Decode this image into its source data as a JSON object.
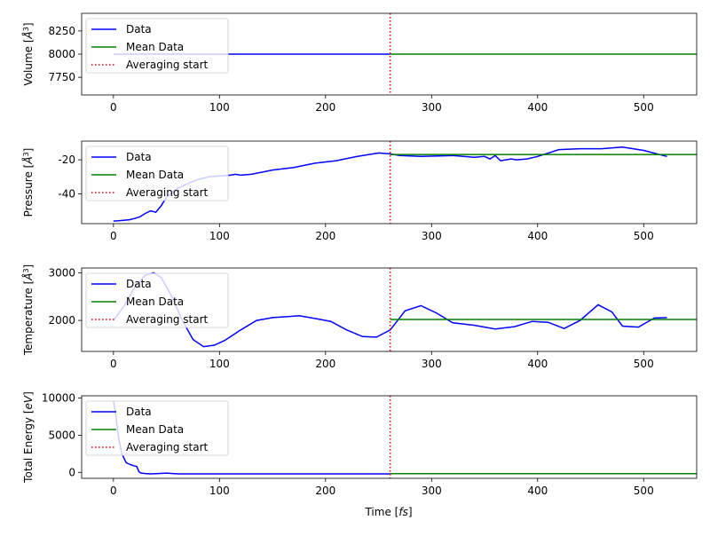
{
  "xlabel": "Time [fs]",
  "xlabel_parts": [
    "Time [",
    "fs",
    "]"
  ],
  "legend_labels": [
    "Data",
    "Mean Data",
    "Averaging start"
  ],
  "colors": {
    "data": "#0000ff",
    "mean": "#008000",
    "start": "#ff0000"
  },
  "chart_data": [
    {
      "type": "line",
      "ylabel": "Volume [Å³]",
      "ylabel_parts": [
        "Volume [",
        "Å",
        "3",
        "]"
      ],
      "xlim": [
        -30,
        550
      ],
      "ylim": [
        7560,
        8440
      ],
      "xticks": [
        0,
        100,
        200,
        300,
        400,
        500
      ],
      "yticks": [
        7750,
        8000,
        8250
      ],
      "grid": false,
      "legend": "top-left",
      "averaging_start": 261,
      "mean": {
        "x": [
          261,
          550
        ],
        "y": 8000
      },
      "series": [
        {
          "x": [
            0,
            100,
            200,
            261
          ],
          "y": [
            8000,
            8000,
            8000,
            8000
          ]
        }
      ]
    },
    {
      "type": "line",
      "ylabel": "Pressure [Å³]",
      "ylabel_parts": [
        "Pressure [",
        "Å",
        "3",
        "]"
      ],
      "xlim": [
        -30,
        550
      ],
      "ylim": [
        -57.5,
        -9
      ],
      "xticks": [
        0,
        100,
        200,
        300,
        400,
        500
      ],
      "yticks": [
        -40,
        -20
      ],
      "grid": false,
      "legend": "top-left",
      "averaging_start": 261,
      "mean": {
        "x": [
          261,
          550
        ],
        "y": -16.9
      },
      "series": [
        {
          "x": [
            0,
            5,
            15,
            20,
            25,
            30,
            35,
            40,
            45,
            50,
            60,
            70,
            80,
            90,
            100,
            110,
            115,
            120,
            130,
            150,
            170,
            190,
            210,
            230,
            250,
            261,
            270,
            290,
            320,
            340,
            350,
            355,
            360,
            365,
            370,
            375,
            380,
            390,
            400,
            420,
            440,
            460,
            480,
            500,
            522
          ],
          "y": [
            -56,
            -55.8,
            -55.2,
            -54.5,
            -53.5,
            -51.5,
            -50,
            -50.8,
            -47,
            -42,
            -37,
            -34,
            -31.5,
            -30,
            -29.5,
            -29,
            -28.5,
            -29,
            -28.5,
            -26,
            -24.5,
            -22,
            -20.5,
            -18,
            -16,
            -16.5,
            -17.5,
            -18,
            -17.5,
            -18.5,
            -18,
            -19.5,
            -17.5,
            -20.5,
            -20,
            -19.5,
            -20,
            -19.5,
            -18,
            -14,
            -13.5,
            -13.5,
            -12.5,
            -14.5,
            -18
          ]
        }
      ]
    },
    {
      "type": "line",
      "ylabel": "Temperature [Å³]",
      "ylabel_parts": [
        "Temperature [",
        "Å",
        "3",
        "]"
      ],
      "xlim": [
        -30,
        550
      ],
      "ylim": [
        1350,
        3100
      ],
      "xticks": [
        0,
        100,
        200,
        300,
        400,
        500
      ],
      "yticks": [
        2000,
        3000
      ],
      "grid": false,
      "legend": "top-left",
      "averaging_start": 261,
      "mean": {
        "x": [
          261,
          550
        ],
        "y": 2020
      },
      "series": [
        {
          "x": [
            0,
            10,
            20,
            30,
            38,
            45,
            55,
            65,
            75,
            85,
            95,
            105,
            120,
            135,
            150,
            165,
            175,
            190,
            205,
            220,
            235,
            248,
            261,
            275,
            290,
            305,
            320,
            340,
            360,
            378,
            395,
            410,
            425,
            440,
            457,
            470,
            480,
            495,
            510,
            522
          ],
          "y": [
            2000,
            2300,
            2700,
            2950,
            3000,
            2900,
            2500,
            2000,
            1600,
            1450,
            1480,
            1580,
            1800,
            2000,
            2060,
            2080,
            2100,
            2040,
            1980,
            1800,
            1660,
            1650,
            1800,
            2200,
            2310,
            2150,
            1950,
            1900,
            1820,
            1870,
            1980,
            1960,
            1830,
            2000,
            2330,
            2180,
            1880,
            1860,
            2050,
            2060
          ]
        }
      ]
    },
    {
      "type": "line",
      "ylabel": "Total Energy [eV]",
      "ylabel_parts": [
        "Total Energy [",
        "eV",
        "]"
      ],
      "xlim": [
        -30,
        550
      ],
      "ylim": [
        -800,
        10300
      ],
      "xticks": [
        0,
        100,
        200,
        300,
        400,
        500
      ],
      "yticks": [
        0,
        5000,
        10000
      ],
      "grid": false,
      "legend": "top-left",
      "averaging_start": 261,
      "mean": {
        "x": [
          261,
          550
        ],
        "y": -180
      },
      "series": [
        {
          "x": [
            0,
            2,
            5,
            8,
            12,
            16,
            19,
            22,
            24,
            26,
            30,
            35,
            42,
            50,
            60,
            80,
            100,
            150,
            200,
            261
          ],
          "y": [
            9600,
            8000,
            4500,
            2500,
            1300,
            1050,
            900,
            800,
            100,
            -100,
            -150,
            -200,
            -150,
            -100,
            -200,
            -200,
            -200,
            -200,
            -200,
            -200
          ]
        }
      ]
    }
  ]
}
